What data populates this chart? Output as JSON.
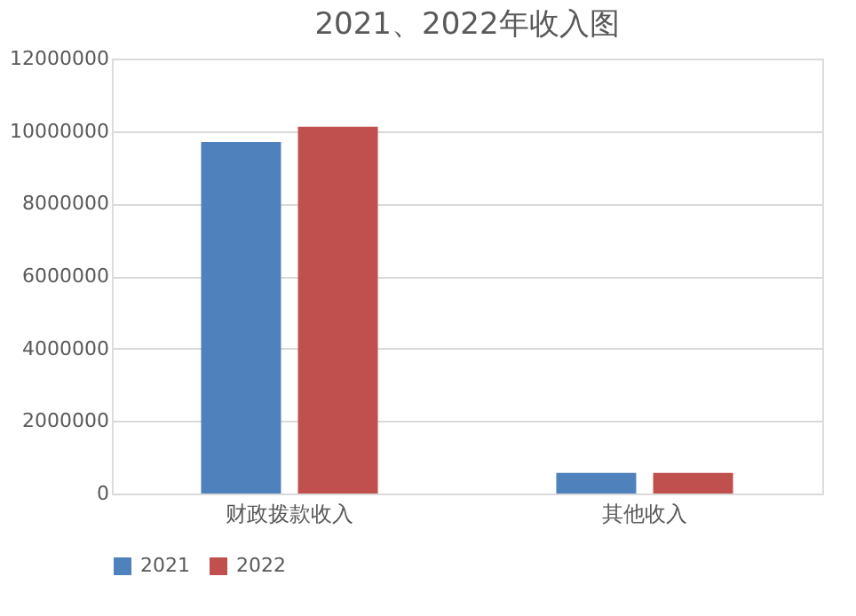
{
  "chart_data": {
    "type": "bar",
    "title": "2021、2022年收入图",
    "categories": [
      "财政拨款收入",
      "其他收入"
    ],
    "series": [
      {
        "name": "2021",
        "color": "#4f81bd",
        "values": [
          9700000,
          570000
        ]
      },
      {
        "name": "2022",
        "color": "#c0504d",
        "values": [
          10120000,
          570000
        ]
      }
    ],
    "ylim": [
      0,
      12000000
    ],
    "yticks": [
      0,
      2000000,
      4000000,
      6000000,
      8000000,
      10000000,
      12000000
    ],
    "grid": "y",
    "legend": "bottom"
  }
}
